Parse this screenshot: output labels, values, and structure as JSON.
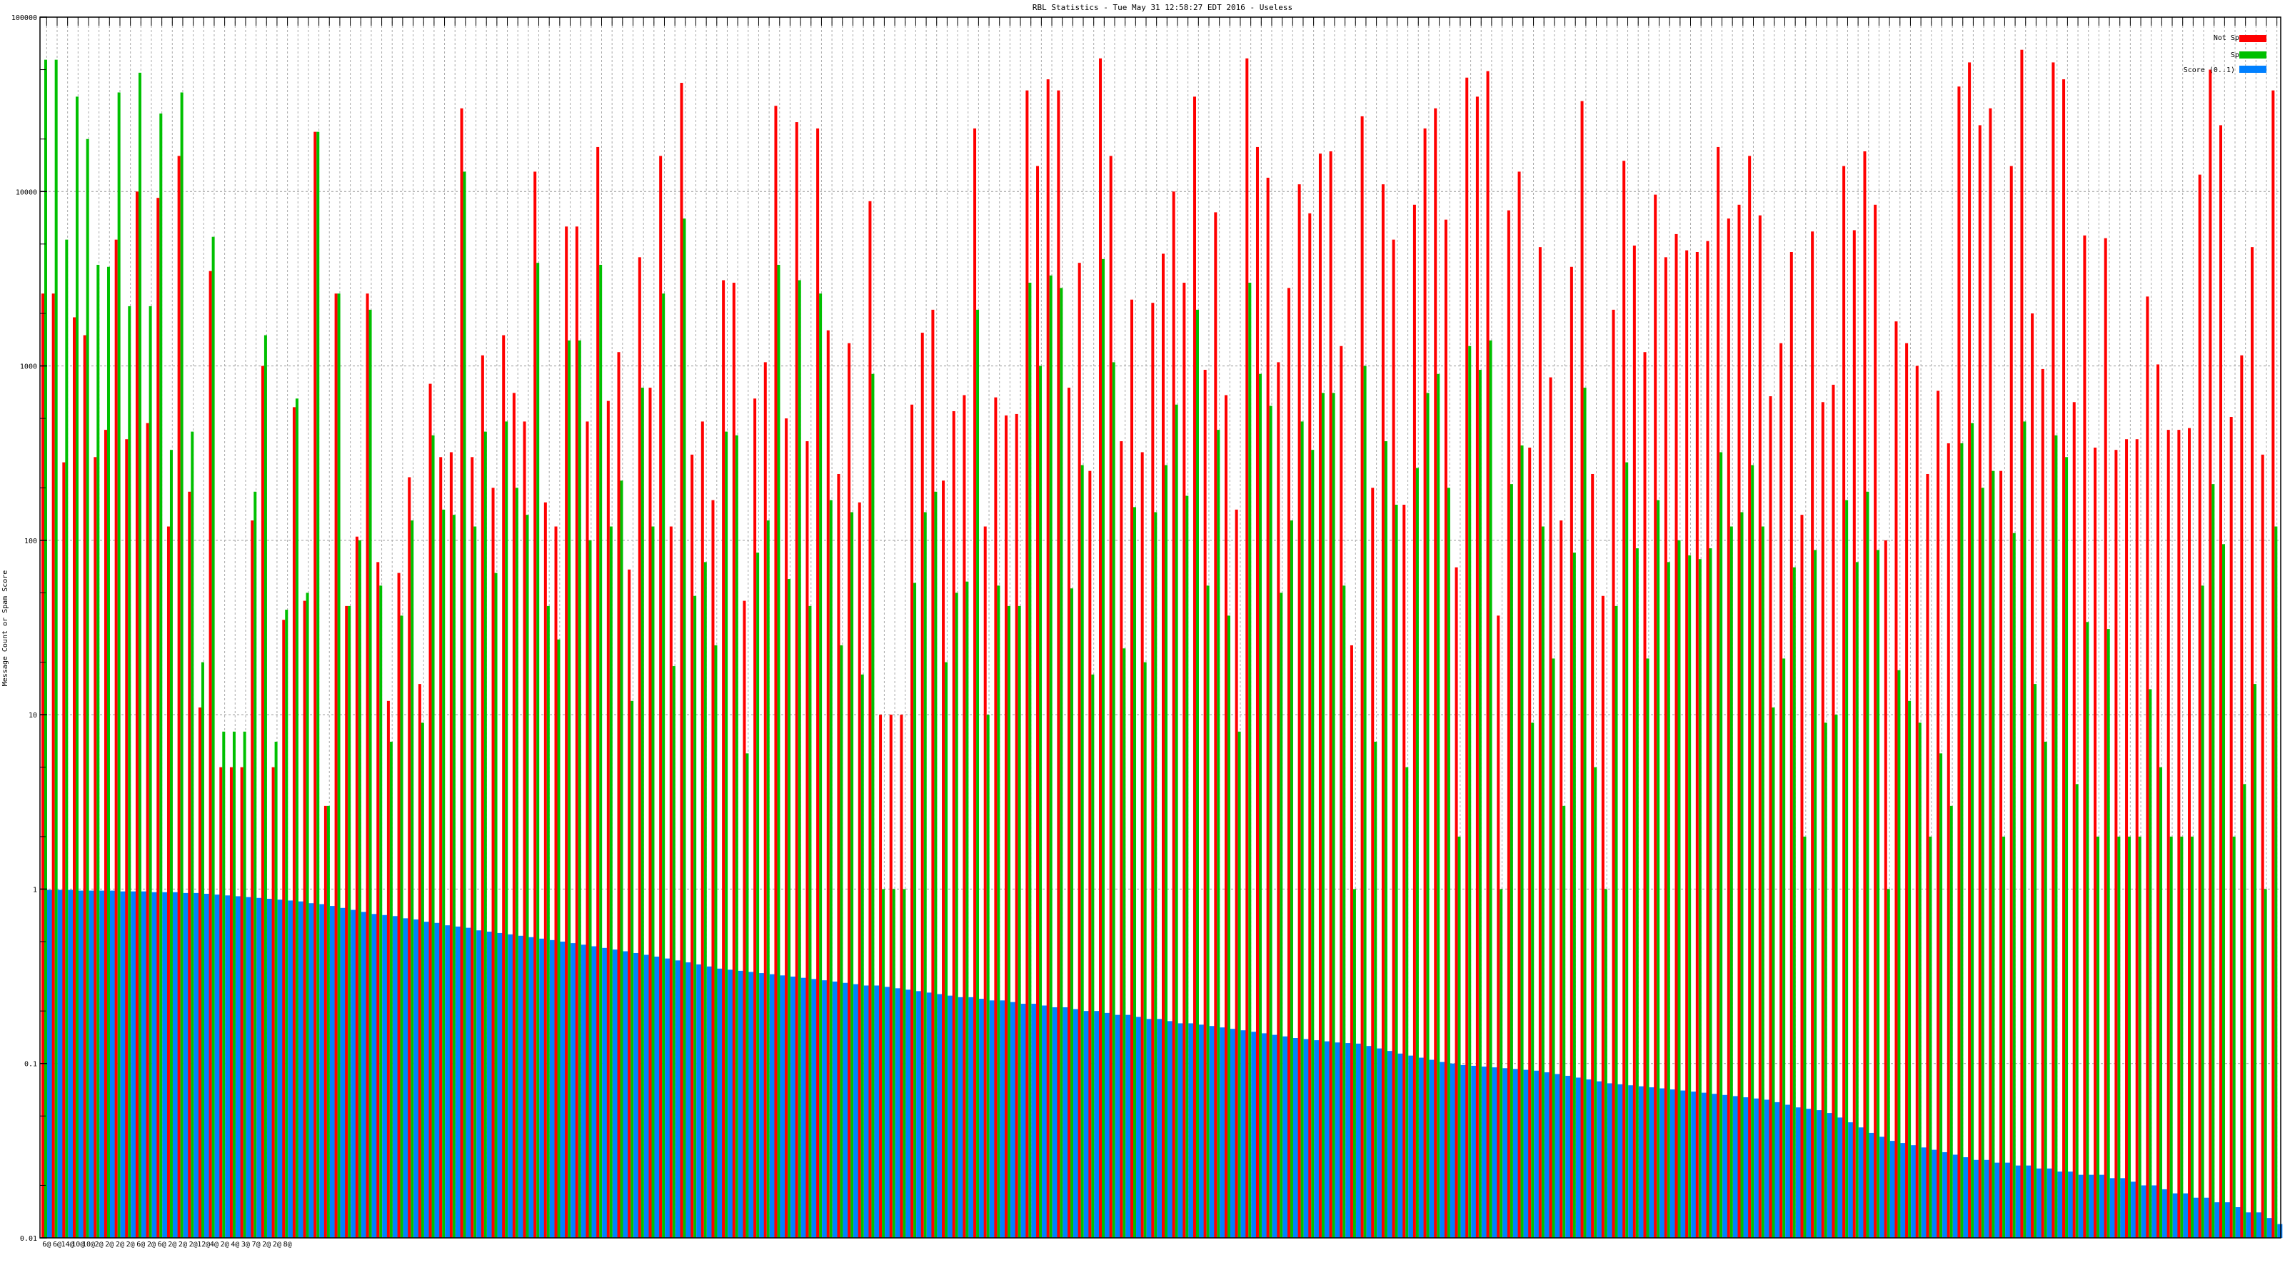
{
  "chart_data": {
    "type": "bar",
    "title": "RBL Statistics - Tue May 31 12:58:27 EDT 2016 - Useless",
    "xlabel": "",
    "ylabel": "Message Count or Spam Score",
    "yscale": "log",
    "ylim": [
      0.01,
      100000
    ],
    "yticks": [
      "100000",
      "10000",
      "1000",
      "100",
      "10",
      "1",
      "0.1",
      "0.01"
    ],
    "grid": true,
    "legend_position": "top-right",
    "colors": {
      "not_spam": "#ff0000",
      "spam": "#00c000",
      "score": "#0080ff"
    },
    "categories_note_first_line": [
      "6@",
      "6@",
      "14@",
      "10@",
      "10@",
      "2@",
      "2@",
      "2@",
      "2@",
      "6@",
      "2@",
      "6@",
      "2@",
      "2@",
      "2@",
      "12@",
      "4@",
      "2@",
      "4@",
      "3@",
      "7@",
      "2@",
      "2@",
      "8@"
    ],
    "series": [
      {
        "name": "Not Spam",
        "values": [
          2600,
          2600,
          280,
          1900,
          1500,
          300,
          430,
          5300,
          380,
          10000,
          470,
          9200,
          120,
          16000,
          190,
          11,
          3500,
          5,
          5,
          5,
          130,
          1000,
          5,
          35,
          580,
          45,
          22000,
          3,
          2600,
          42,
          105,
          2600,
          75,
          12,
          65,
          230,
          15,
          790,
          300,
          320,
          30000,
          300,
          1150,
          200,
          1500,
          700,
          480,
          13000,
          165,
          120,
          6300,
          6300,
          480,
          18000,
          630,
          1200,
          68,
          4200,
          750,
          16000,
          120,
          42000,
          310,
          480,
          170,
          3100,
          3000,
          45,
          650,
          1050,
          31000,
          500,
          25000,
          370,
          23000,
          1600,
          240,
          1350,
          165,
          8800,
          10,
          10,
          10,
          600,
          1550,
          2100,
          220,
          550,
          680,
          23000,
          120,
          660,
          520,
          530,
          38000,
          14000,
          44000,
          38000,
          750,
          3900,
          250,
          58000,
          16000,
          370,
          2400,
          320,
          2300,
          4400,
          10000,
          3000,
          35000,
          950,
          7600,
          680,
          150,
          58000,
          18000,
          12000,
          1050,
          2800,
          11000,
          7500,
          16500,
          17000,
          1300,
          25,
          27000,
          200,
          11000,
          5300,
          160,
          8400,
          23000,
          30000,
          6900,
          70,
          45000,
          35000,
          49000,
          37,
          7800,
          13000,
          340,
          4800,
          860,
          130,
          3700,
          33000,
          240,
          48,
          2100,
          15000,
          4900,
          1200,
          9600,
          4200,
          5700,
          4600,
          4500,
          5200,
          18000,
          7000,
          8400,
          16000,
          7300,
          670,
          1350,
          4500,
          140,
          5900,
          620,
          780,
          14000,
          6000,
          17000,
          8400,
          100,
          1800,
          1350,
          1000,
          240,
          720,
          360,
          40000,
          55000,
          24000,
          30000,
          250,
          14000,
          65000,
          2000,
          960,
          55000,
          44000,
          620,
          5600,
          340,
          5400,
          330,
          380,
          380,
          2500,
          1020,
          430,
          430,
          440,
          12500,
          50000,
          24000,
          510,
          1150,
          4800,
          310,
          38000
        ]
      },
      {
        "name": "Spam",
        "values": [
          57000,
          57000,
          5300,
          35000,
          20000,
          3800,
          3700,
          37000,
          2200,
          48000,
          2200,
          28000,
          330,
          37000,
          420,
          20,
          5500,
          8,
          8,
          8,
          190,
          1500,
          7,
          40,
          650,
          50,
          22000,
          3,
          2600,
          42,
          100,
          2100,
          55,
          7,
          37,
          130,
          9,
          400,
          150,
          140,
          13000,
          120,
          420,
          65,
          480,
          200,
          140,
          3900,
          42,
          27,
          1400,
          1400,
          100,
          3800,
          120,
          220,
          12,
          750,
          120,
          2600,
          19,
          7000,
          48,
          75,
          25,
          420,
          400,
          6,
          85,
          130,
          3800,
          60,
          3100,
          42,
          2600,
          170,
          25,
          145,
          17,
          900,
          1,
          1,
          1,
          57,
          145,
          190,
          20,
          50,
          58,
          2100,
          10,
          55,
          42,
          42,
          3000,
          1000,
          3300,
          2800,
          53,
          270,
          17,
          4100,
          1050,
          24,
          155,
          20,
          145,
          270,
          600,
          180,
          2100,
          55,
          430,
          37,
          8,
          3000,
          900,
          590,
          50,
          130,
          480,
          330,
          700,
          700,
          55,
          1,
          1000,
          7,
          370,
          160,
          5,
          260,
          700,
          900,
          200,
          2,
          1300,
          950,
          1400,
          1,
          210,
          350,
          9,
          120,
          21,
          3,
          85,
          750,
          5,
          1,
          42,
          280,
          90,
          21,
          170,
          75,
          100,
          82,
          78,
          90,
          320,
          120,
          145,
          270,
          120,
          11,
          21,
          70,
          2,
          88,
          9,
          10,
          170,
          75,
          190,
          88,
          1,
          18,
          12,
          9,
          2,
          6,
          3,
          360,
          470,
          200,
          250,
          2,
          110,
          480,
          15,
          7,
          400,
          300,
          4,
          34,
          2,
          31,
          2,
          2,
          2,
          14,
          5,
          2,
          2,
          2,
          55,
          210,
          95,
          2,
          4,
          15,
          1,
          120
        ]
      },
      {
        "name": "Score (0..1)",
        "values": [
          0.99,
          0.99,
          0.99,
          0.98,
          0.98,
          0.98,
          0.98,
          0.97,
          0.97,
          0.97,
          0.96,
          0.96,
          0.96,
          0.95,
          0.95,
          0.94,
          0.93,
          0.92,
          0.91,
          0.9,
          0.89,
          0.88,
          0.87,
          0.86,
          0.85,
          0.83,
          0.82,
          0.8,
          0.78,
          0.76,
          0.74,
          0.72,
          0.71,
          0.7,
          0.68,
          0.67,
          0.65,
          0.64,
          0.62,
          0.61,
          0.6,
          0.58,
          0.57,
          0.56,
          0.55,
          0.54,
          0.53,
          0.52,
          0.51,
          0.5,
          0.49,
          0.48,
          0.47,
          0.46,
          0.45,
          0.44,
          0.43,
          0.42,
          0.41,
          0.4,
          0.39,
          0.38,
          0.37,
          0.36,
          0.35,
          0.345,
          0.34,
          0.335,
          0.33,
          0.325,
          0.32,
          0.315,
          0.31,
          0.305,
          0.3,
          0.295,
          0.29,
          0.285,
          0.28,
          0.28,
          0.275,
          0.27,
          0.265,
          0.26,
          0.255,
          0.25,
          0.245,
          0.24,
          0.24,
          0.235,
          0.23,
          0.23,
          0.225,
          0.22,
          0.22,
          0.215,
          0.21,
          0.21,
          0.205,
          0.2,
          0.2,
          0.195,
          0.19,
          0.19,
          0.185,
          0.18,
          0.18,
          0.175,
          0.17,
          0.17,
          0.167,
          0.164,
          0.161,
          0.158,
          0.155,
          0.152,
          0.149,
          0.146,
          0.143,
          0.14,
          0.138,
          0.136,
          0.134,
          0.132,
          0.131,
          0.13,
          0.126,
          0.122,
          0.118,
          0.114,
          0.111,
          0.108,
          0.105,
          0.102,
          0.1,
          0.098,
          0.097,
          0.096,
          0.095,
          0.094,
          0.093,
          0.092,
          0.091,
          0.089,
          0.087,
          0.085,
          0.083,
          0.081,
          0.079,
          0.077,
          0.076,
          0.075,
          0.074,
          0.073,
          0.072,
          0.071,
          0.07,
          0.069,
          0.068,
          0.067,
          0.066,
          0.065,
          0.064,
          0.063,
          0.062,
          0.06,
          0.058,
          0.056,
          0.055,
          0.054,
          0.052,
          0.049,
          0.046,
          0.043,
          0.04,
          0.038,
          0.036,
          0.035,
          0.034,
          0.033,
          0.032,
          0.031,
          0.03,
          0.029,
          0.028,
          0.028,
          0.027,
          0.027,
          0.026,
          0.026,
          0.025,
          0.025,
          0.024,
          0.024,
          0.023,
          0.023,
          0.023,
          0.022,
          0.022,
          0.021,
          0.02,
          0.02,
          0.019,
          0.018,
          0.018,
          0.017,
          0.017,
          0.016,
          0.016,
          0.015,
          0.014,
          0.014,
          0.013,
          0.012
        ]
      }
    ]
  }
}
